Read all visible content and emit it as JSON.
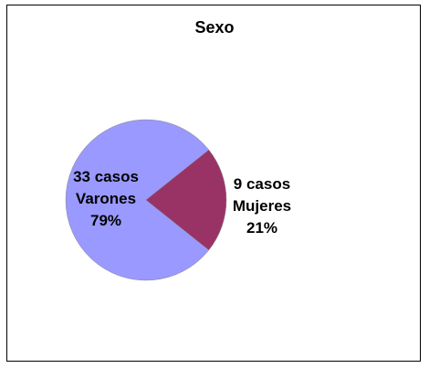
{
  "chart_data": {
    "type": "pie",
    "title": "Sexo",
    "slices": [
      {
        "label_count": "33 casos",
        "label_name": "Varones",
        "label_pct": "79%",
        "value": 33,
        "percent": 79,
        "color": "#9999ff"
      },
      {
        "label_count": "9 casos",
        "label_name": "Mujeres",
        "label_pct": "21%",
        "value": 9,
        "percent": 21,
        "color": "#993366"
      }
    ],
    "legend": "none"
  }
}
